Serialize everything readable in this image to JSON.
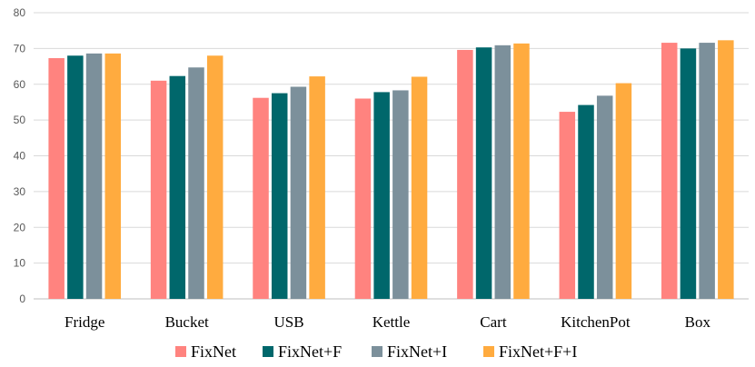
{
  "chart_data": {
    "type": "bar",
    "title": "",
    "xlabel": "",
    "ylabel": "",
    "categories": [
      "Fridge",
      "Bucket",
      "USB",
      "Kettle",
      "Cart",
      "KitchenPot",
      "Box"
    ],
    "ylim": [
      0,
      80
    ],
    "yticks": [
      "0",
      "10",
      "20",
      "30",
      "40",
      "50",
      "60",
      "70",
      "80"
    ],
    "grid": true,
    "legend_position": "bottom",
    "series": [
      {
        "name": "FixNet",
        "color": "#FF837F",
        "values": [
          67.3,
          61.0,
          56.2,
          56.0,
          69.6,
          52.3,
          71.6
        ]
      },
      {
        "name": "FixNet+F",
        "color": "#00676B",
        "values": [
          68.0,
          62.3,
          57.5,
          57.8,
          70.3,
          54.2,
          70.0
        ]
      },
      {
        "name": "FixNet+I",
        "color": "#7C909B",
        "values": [
          68.6,
          64.7,
          59.3,
          58.3,
          70.9,
          56.8,
          71.6
        ]
      },
      {
        "name": "FixNet+F+I",
        "color": "#FFAB3F",
        "values": [
          68.6,
          68.0,
          62.2,
          62.1,
          71.4,
          60.3,
          72.3
        ]
      }
    ]
  }
}
